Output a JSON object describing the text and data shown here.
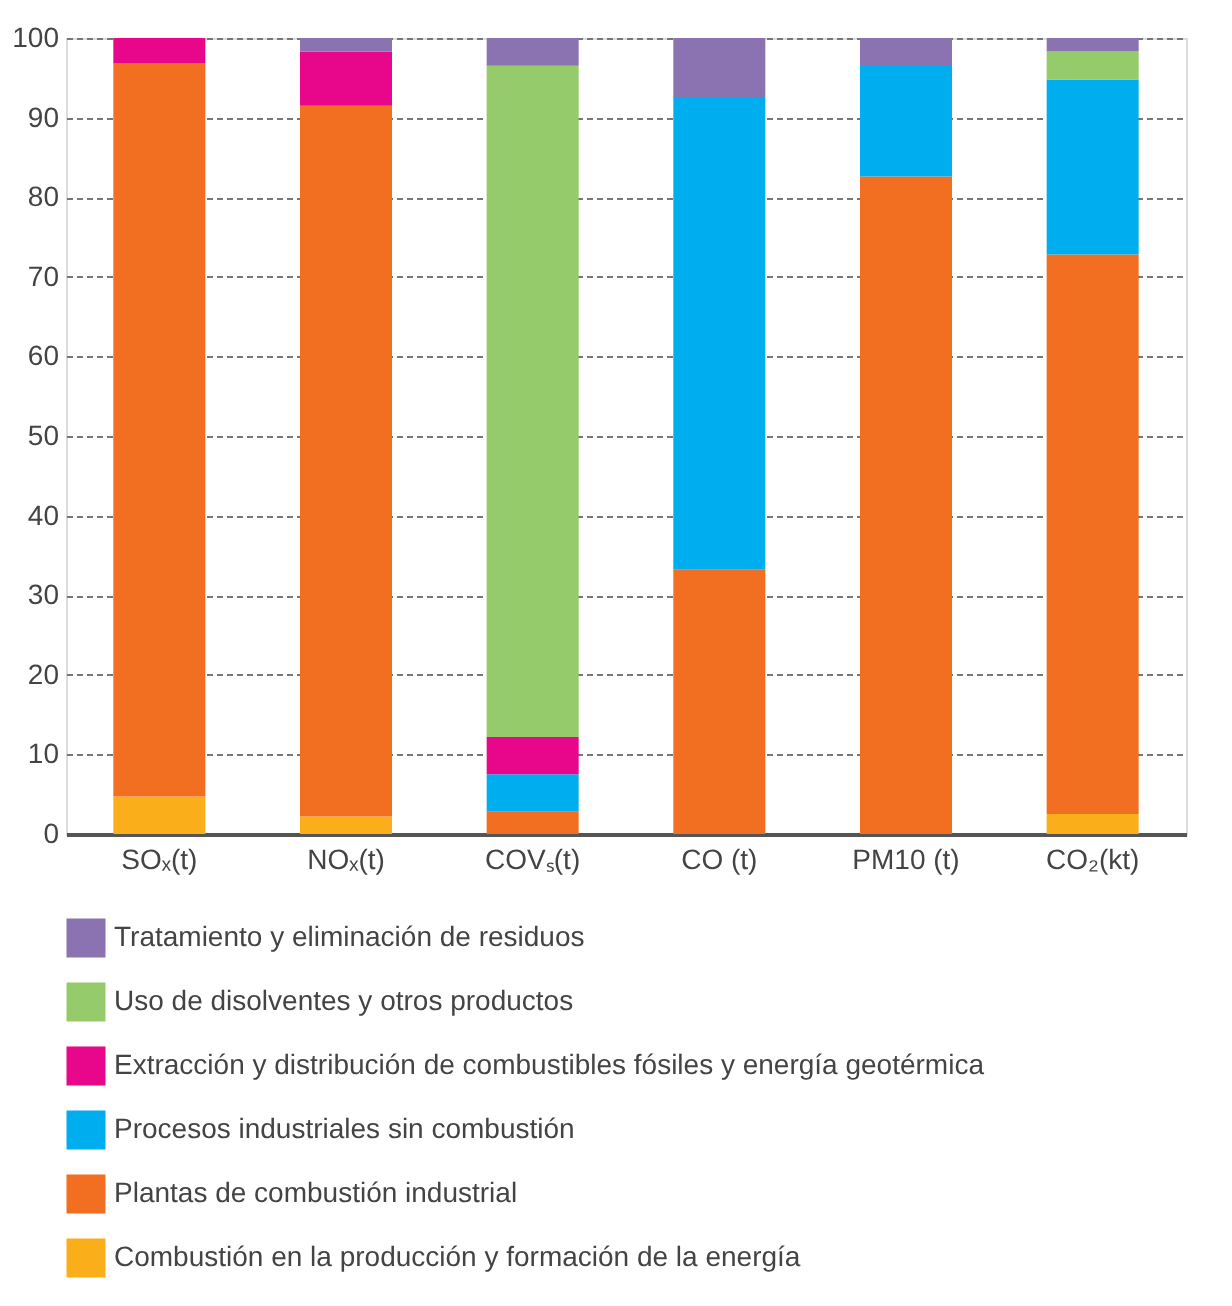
{
  "chart_data": {
    "type": "bar",
    "stacked": true,
    "categories": [
      "SOₓ(t)",
      "NOₓ(t)",
      "COVₛ(t)",
      "CO (t)",
      "PM10 (t)",
      "CO₂(kt)"
    ],
    "series": [
      {
        "name": "Combustión en la producción y formación de la energía",
        "color": "#f9ae1a",
        "values": [
          4.7,
          2.2,
          null,
          null,
          null,
          2.5
        ]
      },
      {
        "name": "Plantas de combustión industrial",
        "color": "#f26f21",
        "values": [
          92.1,
          89.3,
          2.8,
          33.2,
          82.6,
          70.3
        ]
      },
      {
        "name": "Procesos industriales sin combustión",
        "color": "#00aeef",
        "values": [
          null,
          null,
          4.7,
          59.4,
          14.0,
          22.0
        ]
      },
      {
        "name": "Extracción y distribución de combustibles fósiles y energía geotérmica",
        "color": "#e8068a",
        "values": [
          3.2,
          6.8,
          4.7,
          null,
          null,
          null
        ]
      },
      {
        "name": "Uso de disolventes y otros productos",
        "color": "#96cb6c",
        "values": [
          null,
          null,
          84.3,
          null,
          null,
          3.5
        ]
      },
      {
        "name": "Tratamiento y eliminación de residuos",
        "color": "#8b72b0",
        "values": [
          null,
          1.7,
          3.5,
          7.4,
          3.4,
          1.7
        ]
      }
    ],
    "ylim": [
      0,
      100
    ],
    "yticks": [
      0,
      10,
      20,
      30,
      40,
      50,
      60,
      70,
      80,
      90,
      100
    ],
    "grid": "y",
    "legend": "bottom"
  }
}
